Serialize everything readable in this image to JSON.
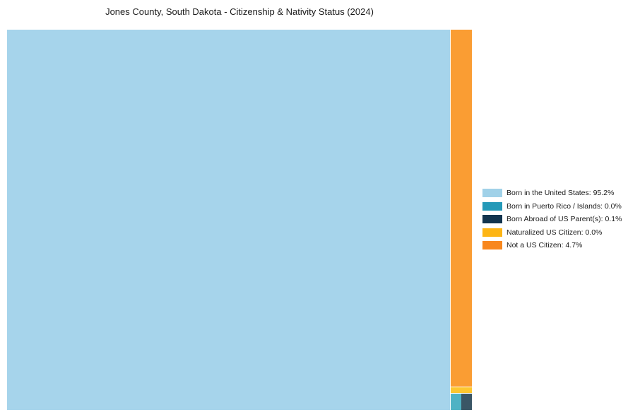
{
  "chart_data": {
    "type": "treemap",
    "title": "Jones County, South Dakota - Citizenship & Nativity Status (2024)",
    "unit": "%",
    "legend_position": "right",
    "background_color": "#ffffff",
    "items": [
      {
        "label": "Born in the United States",
        "value_pct": 95.2,
        "display": "Born in the United States: 95.2%",
        "chart_color": "#A6D4EB",
        "legend_color": "#A0D1E8"
      },
      {
        "label": "Born in Puerto Rico / Islands",
        "value_pct": 0.0,
        "display": "Born in Puerto Rico / Islands: 0.0%",
        "chart_color": "#4FB2C4",
        "legend_color": "#2499B8"
      },
      {
        "label": "Born Abroad of US Parent(s)",
        "value_pct": 0.1,
        "display": "Born Abroad of US Parent(s): 0.1%",
        "chart_color": "#3A5666",
        "legend_color": "#12344E"
      },
      {
        "label": "Naturalized US Citizen",
        "value_pct": 0.0,
        "display": "Naturalized US Citizen: 0.0%",
        "chart_color": "#FDC62F",
        "legend_color": "#FDB515"
      },
      {
        "label": "Not a US Citizen",
        "value_pct": 4.7,
        "display": "Not a US Citizen: 4.7%",
        "chart_color": "#FA9D33",
        "legend_color": "#F8871E"
      }
    ]
  }
}
